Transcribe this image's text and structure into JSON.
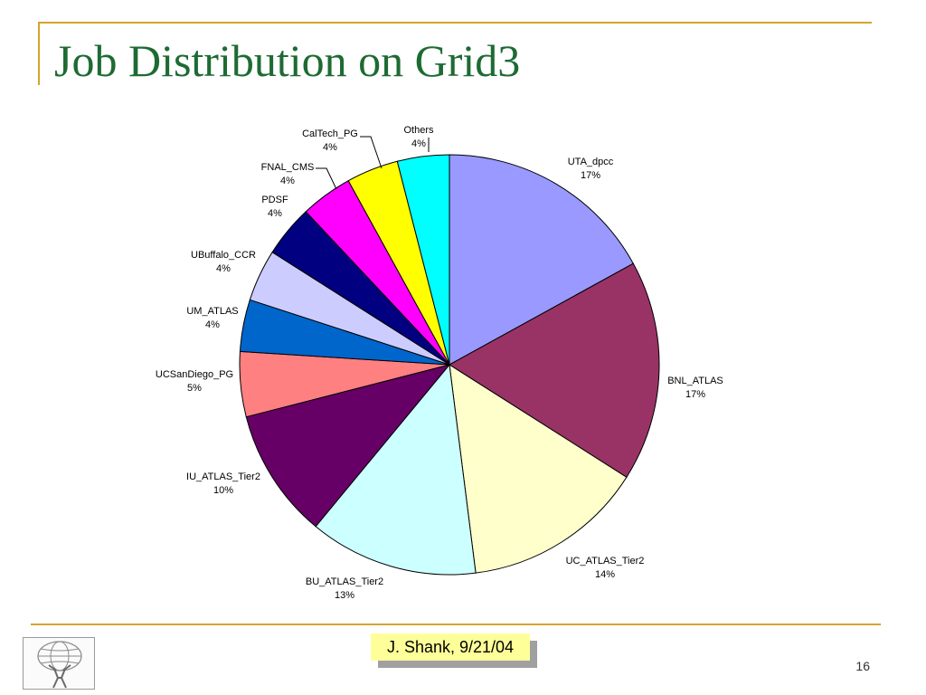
{
  "slide": {
    "title": "Job Distribution on Grid3",
    "author": "J. Shank, 9/21/04",
    "page_number": "16",
    "accent_color": "#d4a52a",
    "title_color": "#1d6b33"
  },
  "chart_data": {
    "type": "pie",
    "title": "",
    "start_angle": "12 o'clock, clockwise",
    "slices": [
      {
        "name": "UTA_dpcc",
        "label": "17%",
        "value": 17,
        "color": "#9999ff"
      },
      {
        "name": "BNL_ATLAS",
        "label": "17%",
        "value": 17,
        "color": "#993366"
      },
      {
        "name": "UC_ATLAS_Tier2",
        "label": "14%",
        "value": 14,
        "color": "#ffffcc"
      },
      {
        "name": "BU_ATLAS_Tier2",
        "label": "13%",
        "value": 13,
        "color": "#ccffff"
      },
      {
        "name": "IU_ATLAS_Tier2",
        "label": "10%",
        "value": 10,
        "color": "#660066"
      },
      {
        "name": "UCSanDiego_PG",
        "label": "5%",
        "value": 5,
        "color": "#ff8080"
      },
      {
        "name": "UM_ATLAS",
        "label": "4%",
        "value": 4,
        "color": "#0066cc"
      },
      {
        "name": "UBuffalo_CCR",
        "label": "4%",
        "value": 4,
        "color": "#ccccff"
      },
      {
        "name": "PDSF",
        "label": "4%",
        "value": 4,
        "color": "#000080"
      },
      {
        "name": "FNAL_CMS",
        "label": "4%",
        "value": 4,
        "color": "#ff00ff"
      },
      {
        "name": "CalTech_PG",
        "label": "4%",
        "value": 4,
        "color": "#ffff00"
      },
      {
        "name": "Others",
        "label": "4%",
        "value": 4,
        "color": "#00ffff"
      }
    ]
  }
}
